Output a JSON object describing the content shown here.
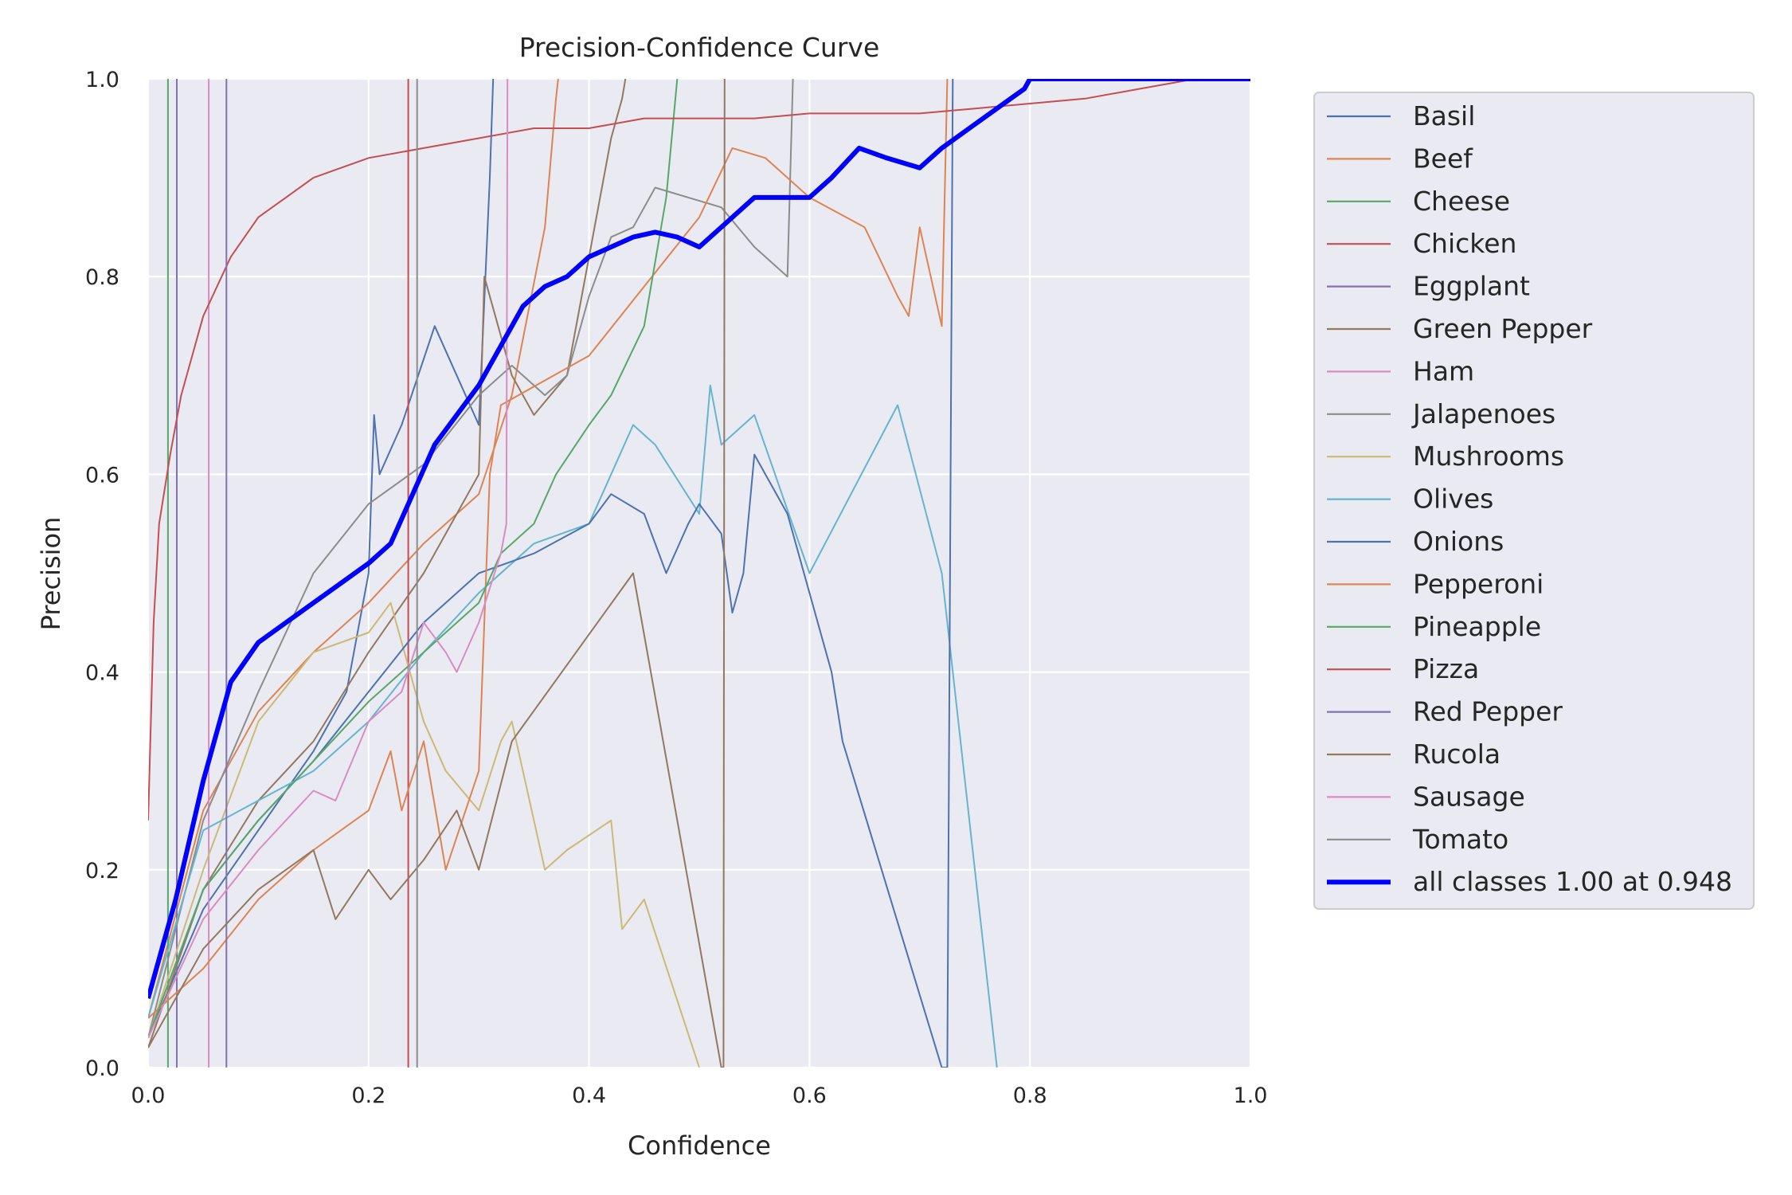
{
  "chart_data": {
    "type": "line",
    "title": "Precision-Confidence Curve",
    "xlabel": "Confidence",
    "ylabel": "Precision",
    "xlim": [
      0,
      1
    ],
    "ylim": [
      0,
      1
    ],
    "xticks": [
      "0.0",
      "0.2",
      "0.4",
      "0.6",
      "0.8",
      "1.0"
    ],
    "yticks": [
      "0.0",
      "0.2",
      "0.4",
      "0.6",
      "0.8",
      "1.0"
    ],
    "grid": true,
    "legend_position": "outside-right",
    "series": [
      {
        "name": "Basil",
        "color": "#4c72b0",
        "x": [
          0.0,
          0.05,
          0.1,
          0.15,
          0.18,
          0.2,
          0.205,
          0.21,
          0.23,
          0.26,
          0.28,
          0.3,
          0.31,
          0.313
        ],
        "y": [
          0.03,
          0.16,
          0.24,
          0.32,
          0.38,
          0.5,
          0.66,
          0.6,
          0.65,
          0.75,
          0.7,
          0.65,
          0.9,
          1.0
        ]
      },
      {
        "name": "Beef",
        "color": "#dd8452",
        "x": [
          0.0,
          0.05,
          0.1,
          0.15,
          0.2,
          0.25,
          0.3,
          0.33,
          0.36,
          0.37,
          0.372
        ],
        "y": [
          0.05,
          0.26,
          0.36,
          0.42,
          0.47,
          0.53,
          0.58,
          0.68,
          0.85,
          0.98,
          1.0
        ]
      },
      {
        "name": "Cheese",
        "color": "#55a868",
        "x": [
          0.018,
          0.018,
          0.018,
          0.0185
        ],
        "y": [
          1.0,
          0.0,
          0.0,
          0.0
        ]
      },
      {
        "name": "Chicken",
        "color": "#c44e52",
        "x": [
          0.236,
          0.236
        ],
        "y": [
          1.0,
          0.0
        ]
      },
      {
        "name": "Eggplant",
        "color": "#8172b3",
        "x": [
          0.026,
          0.026
        ],
        "y": [
          1.0,
          0.0
        ]
      },
      {
        "name": "Green Pepper",
        "color": "#937860",
        "x": [
          0.0,
          0.05,
          0.1,
          0.15,
          0.2,
          0.25,
          0.3,
          0.305,
          0.33,
          0.35,
          0.38,
          0.4,
          0.42,
          0.43,
          0.433
        ],
        "y": [
          0.02,
          0.18,
          0.27,
          0.33,
          0.42,
          0.5,
          0.6,
          0.8,
          0.7,
          0.66,
          0.7,
          0.82,
          0.94,
          0.98,
          1.0
        ]
      },
      {
        "name": "Ham",
        "color": "#da8bc3",
        "x": [
          0.055,
          0.055
        ],
        "y": [
          1.0,
          0.0
        ]
      },
      {
        "name": "Jalapenoes",
        "color": "#8c8c8c",
        "x": [
          0.0,
          0.05,
          0.1,
          0.15,
          0.2,
          0.25,
          0.3,
          0.33,
          0.36,
          0.38,
          0.4,
          0.42,
          0.44,
          0.46,
          0.52,
          0.55,
          0.58,
          0.585
        ],
        "y": [
          0.03,
          0.25,
          0.38,
          0.5,
          0.57,
          0.61,
          0.68,
          0.71,
          0.68,
          0.7,
          0.78,
          0.84,
          0.85,
          0.89,
          0.87,
          0.83,
          0.8,
          1.0
        ]
      },
      {
        "name": "Mushrooms",
        "color": "#ccb974",
        "x": [
          0.0,
          0.05,
          0.1,
          0.15,
          0.2,
          0.22,
          0.25,
          0.27,
          0.3,
          0.32,
          0.33,
          0.36,
          0.38,
          0.42,
          0.43,
          0.45,
          0.5
        ],
        "y": [
          0.03,
          0.2,
          0.35,
          0.42,
          0.44,
          0.47,
          0.35,
          0.3,
          0.26,
          0.33,
          0.35,
          0.2,
          0.22,
          0.25,
          0.14,
          0.17,
          0.0
        ]
      },
      {
        "name": "Olives",
        "color": "#64b5cd",
        "x": [
          0.0,
          0.05,
          0.1,
          0.15,
          0.2,
          0.25,
          0.3,
          0.35,
          0.4,
          0.44,
          0.46,
          0.5,
          0.51,
          0.52,
          0.55,
          0.6,
          0.68,
          0.72,
          0.77
        ],
        "y": [
          0.05,
          0.24,
          0.27,
          0.3,
          0.35,
          0.42,
          0.48,
          0.53,
          0.55,
          0.65,
          0.63,
          0.56,
          0.69,
          0.63,
          0.66,
          0.5,
          0.67,
          0.5,
          0.0
        ]
      },
      {
        "name": "Onions",
        "color": "#4c72b0",
        "x": [
          0.0,
          0.05,
          0.1,
          0.15,
          0.2,
          0.25,
          0.3,
          0.35,
          0.4,
          0.42,
          0.45,
          0.47,
          0.49,
          0.5,
          0.52,
          0.53,
          0.54,
          0.55,
          0.58,
          0.6,
          0.62,
          0.63,
          0.72,
          0.725,
          0.73
        ],
        "y": [
          0.03,
          0.18,
          0.25,
          0.31,
          0.38,
          0.45,
          0.5,
          0.52,
          0.55,
          0.58,
          0.56,
          0.5,
          0.55,
          0.57,
          0.54,
          0.46,
          0.5,
          0.62,
          0.56,
          0.48,
          0.4,
          0.33,
          0.0,
          0.0,
          1.0
        ]
      },
      {
        "name": "Pepperoni",
        "color": "#dd8452",
        "x": [
          0.0,
          0.05,
          0.1,
          0.15,
          0.2,
          0.22,
          0.23,
          0.25,
          0.27,
          0.3,
          0.31,
          0.32,
          0.4,
          0.5,
          0.53,
          0.56,
          0.6,
          0.65,
          0.68,
          0.69,
          0.7,
          0.72,
          0.725
        ],
        "y": [
          0.05,
          0.1,
          0.17,
          0.22,
          0.26,
          0.32,
          0.26,
          0.33,
          0.2,
          0.3,
          0.6,
          0.67,
          0.72,
          0.86,
          0.93,
          0.92,
          0.88,
          0.85,
          0.78,
          0.76,
          0.85,
          0.75,
          1.0
        ]
      },
      {
        "name": "Pineapple",
        "color": "#55a868",
        "x": [
          0.0,
          0.05,
          0.1,
          0.15,
          0.2,
          0.25,
          0.3,
          0.32,
          0.35,
          0.37,
          0.4,
          0.42,
          0.45,
          0.47,
          0.48
        ],
        "y": [
          0.03,
          0.18,
          0.25,
          0.31,
          0.37,
          0.42,
          0.47,
          0.52,
          0.55,
          0.6,
          0.65,
          0.68,
          0.75,
          0.88,
          1.0
        ]
      },
      {
        "name": "Pizza",
        "color": "#c44e52",
        "x": [
          0.0,
          0.005,
          0.01,
          0.02,
          0.03,
          0.05,
          0.075,
          0.1,
          0.125,
          0.15,
          0.175,
          0.2,
          0.25,
          0.3,
          0.35,
          0.4,
          0.45,
          0.5,
          0.55,
          0.6,
          0.65,
          0.7,
          0.75,
          0.8,
          0.85,
          0.9,
          0.95,
          1.0
        ],
        "y": [
          0.25,
          0.45,
          0.55,
          0.62,
          0.68,
          0.76,
          0.82,
          0.86,
          0.88,
          0.9,
          0.91,
          0.92,
          0.93,
          0.94,
          0.95,
          0.95,
          0.96,
          0.96,
          0.96,
          0.965,
          0.965,
          0.965,
          0.97,
          0.975,
          0.98,
          0.99,
          1.0,
          1.0
        ]
      },
      {
        "name": "Red Pepper",
        "color": "#8172b3",
        "x": [
          0.071,
          0.071
        ],
        "y": [
          1.0,
          0.0
        ]
      },
      {
        "name": "Rucola",
        "color": "#937860",
        "x": [
          0.0,
          0.05,
          0.1,
          0.15,
          0.17,
          0.2,
          0.22,
          0.25,
          0.28,
          0.3,
          0.33,
          0.44,
          0.52,
          0.522,
          0.523
        ],
        "y": [
          0.02,
          0.12,
          0.18,
          0.22,
          0.15,
          0.2,
          0.17,
          0.21,
          0.26,
          0.2,
          0.33,
          0.5,
          0.0,
          0.0,
          1.0
        ]
      },
      {
        "name": "Sausage",
        "color": "#da8bc3",
        "x": [
          0.0,
          0.05,
          0.1,
          0.15,
          0.17,
          0.2,
          0.23,
          0.25,
          0.27,
          0.28,
          0.3,
          0.32,
          0.325,
          0.326
        ],
        "y": [
          0.03,
          0.15,
          0.22,
          0.28,
          0.27,
          0.35,
          0.38,
          0.45,
          0.42,
          0.4,
          0.45,
          0.52,
          0.55,
          1.0
        ]
      },
      {
        "name": "Tomato",
        "color": "#8c8c8c",
        "x": [
          0.244,
          0.244
        ],
        "y": [
          1.0,
          0.0
        ]
      },
      {
        "name": "all classes 1.00 at 0.948",
        "color": "#0000ff",
        "width": 6,
        "x": [
          0.0,
          0.025,
          0.05,
          0.075,
          0.1,
          0.125,
          0.15,
          0.175,
          0.2,
          0.22,
          0.24,
          0.26,
          0.28,
          0.3,
          0.32,
          0.34,
          0.36,
          0.38,
          0.4,
          0.42,
          0.44,
          0.46,
          0.48,
          0.5,
          0.52,
          0.55,
          0.58,
          0.6,
          0.62,
          0.645,
          0.67,
          0.7,
          0.72,
          0.745,
          0.77,
          0.795,
          0.8,
          0.85,
          0.9,
          0.948,
          1.0
        ],
        "y": [
          0.07,
          0.17,
          0.29,
          0.39,
          0.43,
          0.45,
          0.47,
          0.49,
          0.51,
          0.53,
          0.58,
          0.63,
          0.66,
          0.69,
          0.73,
          0.77,
          0.79,
          0.8,
          0.82,
          0.83,
          0.84,
          0.845,
          0.84,
          0.83,
          0.85,
          0.88,
          0.88,
          0.88,
          0.9,
          0.93,
          0.92,
          0.91,
          0.93,
          0.95,
          0.97,
          0.99,
          1.0,
          1.0,
          1.0,
          1.0,
          1.0
        ]
      }
    ]
  }
}
